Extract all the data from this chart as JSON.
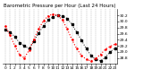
{
  "title": "Barometric Pressure per Hour (Last 24 Hours)",
  "x_labels": [
    "0",
    "1",
    "2",
    "3",
    "4",
    "5",
    "6",
    "7",
    "8",
    "9",
    "10",
    "11",
    "12",
    "13",
    "14",
    "15",
    "16",
    "17",
    "18",
    "19",
    "20",
    "21",
    "22",
    "23"
  ],
  "hours": [
    0,
    1,
    2,
    3,
    4,
    5,
    6,
    7,
    8,
    9,
    10,
    11,
    12,
    13,
    14,
    15,
    16,
    17,
    18,
    19,
    20,
    21,
    22,
    23
  ],
  "black_data": [
    29.72,
    29.65,
    29.5,
    29.3,
    29.2,
    29.1,
    29.35,
    29.62,
    29.85,
    30.05,
    30.15,
    30.22,
    30.18,
    30.1,
    29.9,
    29.65,
    29.38,
    29.1,
    28.88,
    28.75,
    28.7,
    28.82,
    29.0,
    29.12
  ],
  "red_data": [
    29.85,
    29.55,
    29.2,
    28.9,
    28.8,
    29.05,
    29.42,
    29.75,
    30.02,
    30.18,
    30.25,
    30.2,
    30.05,
    29.75,
    29.4,
    29.1,
    28.88,
    28.75,
    28.7,
    28.78,
    28.92,
    29.08,
    29.18,
    29.25
  ],
  "ylim_min": 28.6,
  "ylim_max": 30.4,
  "ytick_values": [
    28.8,
    29.0,
    29.2,
    29.4,
    29.6,
    29.8,
    30.0,
    30.2
  ],
  "ytick_labels": [
    "28.8",
    "29.0",
    "29.2",
    "29.4",
    "29.6",
    "29.8",
    "30.0",
    "30.2"
  ],
  "black_color": "#000000",
  "red_color": "#ff0000",
  "bg_color": "#ffffff",
  "grid_color": "#888888",
  "title_fontsize": 4.0,
  "tick_fontsize": 3.2,
  "linewidth": 0.7,
  "markersize": 1.5
}
